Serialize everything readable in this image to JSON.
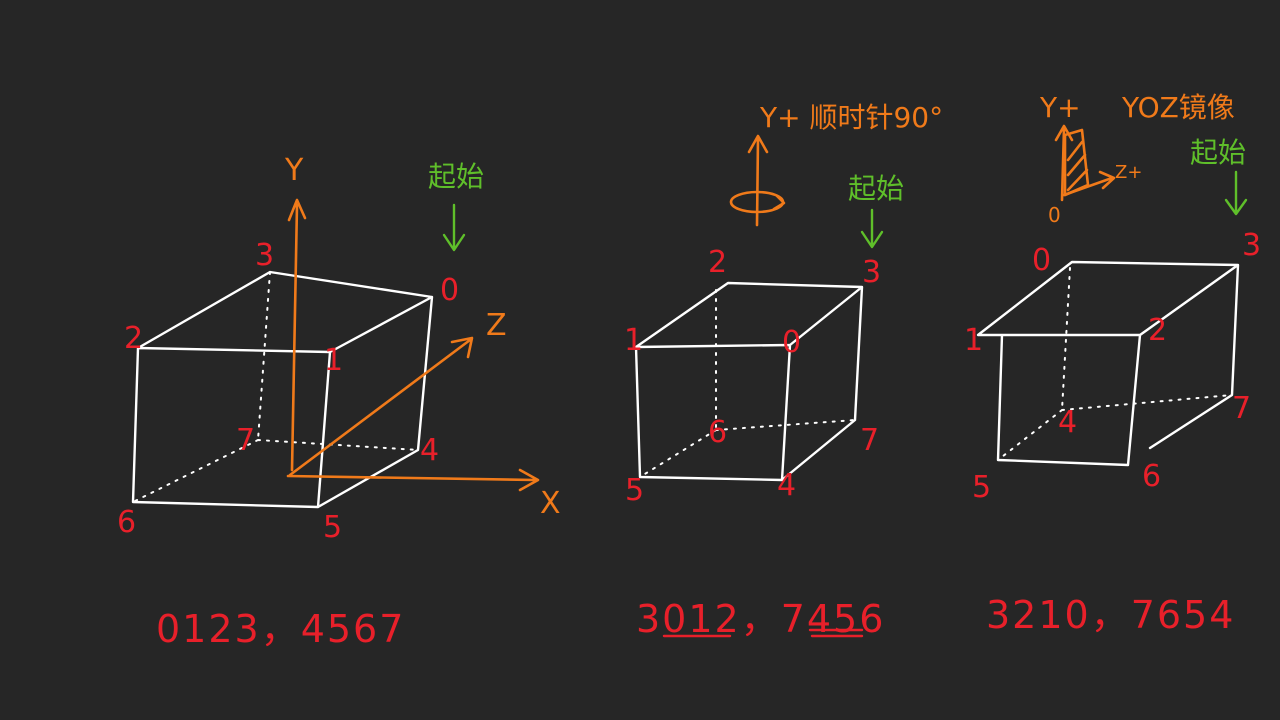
{
  "colors": {
    "background": "#262626",
    "edges": "#ffffff",
    "vertex_labels": "#e8202a",
    "axes": "#f07a1a",
    "start_marker": "#5fbf2a"
  },
  "cube1": {
    "vertices": {
      "v0": "0",
      "v1": "1",
      "v2": "2",
      "v3": "3",
      "v4": "4",
      "v5": "5",
      "v6": "6",
      "v7": "7"
    },
    "axes": {
      "x": "X",
      "y": "Y",
      "z": "Z"
    },
    "start_label": "起始",
    "sequence": "0123，4567"
  },
  "cube2": {
    "vertices": {
      "v0": "0",
      "v1": "1",
      "v2": "2",
      "v3": "3",
      "v4": "4",
      "v5": "5",
      "v6": "6",
      "v7": "7"
    },
    "rotation_note": "Y+ 顺时针90°",
    "start_label": "起始",
    "sequence": "3012，7456"
  },
  "cube3": {
    "vertices": {
      "v0": "0",
      "v1": "1",
      "v2": "2",
      "v3": "3",
      "v4": "4",
      "v5": "5",
      "v6": "6",
      "v7": "7"
    },
    "axis_y": "Y+",
    "axis_z": "Z+",
    "origin": "0",
    "mirror_note": "YOZ镜像",
    "start_label": "起始",
    "sequence": "3210，7654"
  }
}
